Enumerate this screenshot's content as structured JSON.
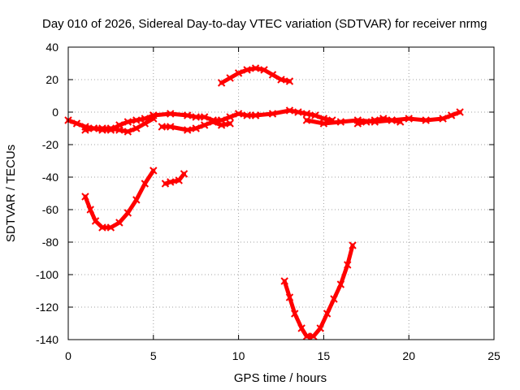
{
  "chart_data": {
    "type": "scatter",
    "title": "Day 010 of 2026, Sidereal Day-to-day VTEC variation (SDTVAR) for receiver nrmg",
    "xlabel": "GPS time / hours",
    "ylabel": "SDTVAR / TECUs",
    "xlim": [
      0,
      25
    ],
    "ylim": [
      -140,
      40
    ],
    "xticks": [
      0,
      5,
      10,
      15,
      20,
      25
    ],
    "yticks": [
      -140,
      -120,
      -100,
      -80,
      -60,
      -40,
      -20,
      0,
      20,
      40
    ],
    "grid": true,
    "legend": "none",
    "series_color": "#ff0000",
    "series": [
      {
        "name": "arc-1",
        "x": [
          0.0,
          0.5,
          1.0,
          1.5,
          2.0,
          2.5,
          3.0,
          3.5,
          4.0,
          4.5,
          5.0
        ],
        "y": [
          -5,
          -7,
          -9,
          -10,
          -10,
          -10,
          -11,
          -12,
          -10,
          -7,
          -4
        ]
      },
      {
        "name": "arc-2",
        "x": [
          1.0,
          1.5,
          2.0,
          2.5,
          3.0,
          3.5,
          4.0,
          4.5,
          5.0
        ],
        "y": [
          -11,
          -10,
          -11,
          -11,
          -8,
          -6,
          -5,
          -4,
          -2
        ]
      },
      {
        "name": "arc-3",
        "x": [
          5.0,
          6.0,
          7.0,
          7.5,
          8.0,
          8.5,
          9.0,
          9.5,
          10.0,
          10.5,
          11.0
        ],
        "y": [
          -2,
          -1,
          -2,
          -3,
          -3,
          -5,
          -5,
          -3,
          -1,
          -2,
          -2
        ]
      },
      {
        "name": "arc-4",
        "x": [
          5.5,
          6.0,
          7.0,
          7.5,
          8.0,
          8.5,
          9.0,
          9.5
        ],
        "y": [
          -9,
          -9,
          -11,
          -10,
          -8,
          -6,
          -8,
          -7
        ]
      },
      {
        "name": "arc-5",
        "x": [
          11.0,
          12.0,
          13.0,
          13.5,
          14.0,
          14.5,
          15.0,
          15.5
        ],
        "y": [
          -2,
          -1,
          1,
          0,
          -1,
          -2,
          -4,
          -5
        ]
      },
      {
        "name": "arc-6",
        "x": [
          14.0,
          15.0,
          16.0,
          17.0,
          18.0,
          19.0,
          20.0,
          21.0,
          22.0,
          22.5,
          23.0
        ],
        "y": [
          -5,
          -7,
          -6,
          -5,
          -6,
          -5,
          -4,
          -5,
          -4,
          -2,
          0
        ]
      },
      {
        "name": "arc-7",
        "x": [
          17.0,
          17.5,
          18.0,
          18.5,
          19.0,
          19.5
        ],
        "y": [
          -7,
          -6,
          -5,
          -4,
          -5,
          -6
        ]
      },
      {
        "name": "arc-8",
        "x": [
          9.0,
          9.5,
          10.0,
          10.5,
          11.0,
          11.5,
          12.0,
          12.5,
          13.0
        ],
        "y": [
          18,
          21,
          24,
          26,
          27,
          26,
          23,
          20,
          19
        ]
      },
      {
        "name": "arc-9",
        "x": [
          1.0,
          1.3,
          1.6,
          2.0,
          2.5,
          3.0,
          3.5,
          4.0,
          4.5,
          5.0
        ],
        "y": [
          -52,
          -60,
          -67,
          -71,
          -71,
          -68,
          -62,
          -54,
          -44,
          -36
        ]
      },
      {
        "name": "arc-10",
        "x": [
          5.7,
          6.0,
          6.5,
          6.8
        ],
        "y": [
          -44,
          -43,
          -42,
          -38
        ]
      },
      {
        "name": "arc-11",
        "x": [
          12.7,
          13.0,
          13.3,
          13.7,
          14.0,
          14.4,
          14.8,
          15.2,
          15.6,
          16.0,
          16.4,
          16.7
        ],
        "y": [
          -104,
          -114,
          -124,
          -133,
          -138,
          -138,
          -133,
          -124,
          -115,
          -106,
          -94,
          -82
        ]
      }
    ]
  }
}
